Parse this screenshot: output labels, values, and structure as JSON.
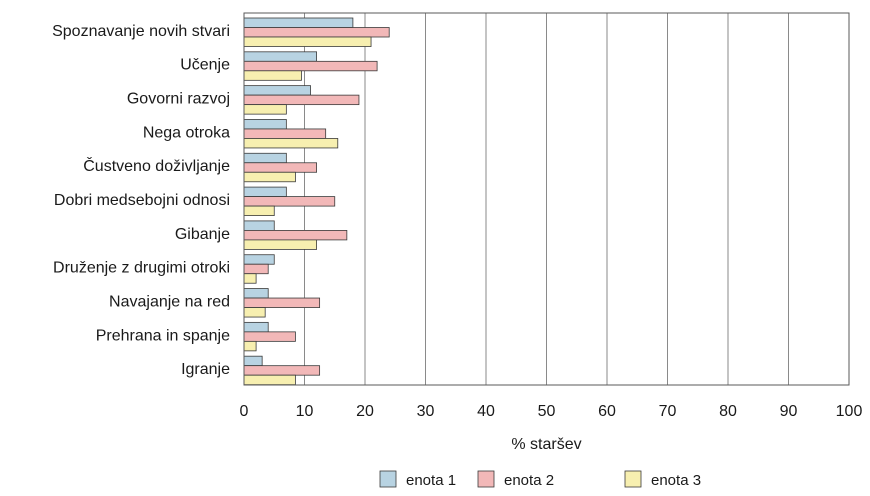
{
  "chart_data": {
    "type": "bar",
    "orientation": "horizontal",
    "categories": [
      "Spoznavanje novih stvari",
      "Učenje",
      "Govorni razvoj",
      "Nega otroka",
      "Čustveno doživljanje",
      "Dobri medsebojni odnosi",
      "Gibanje",
      "Druženje z drugimi otroki",
      "Navajanje na red",
      "Prehrana in spanje",
      "Igranje"
    ],
    "series": [
      {
        "name": "enota 1",
        "color": "#b8d3e2",
        "values": [
          18,
          12,
          11,
          7,
          7,
          7,
          5,
          5,
          4,
          4,
          3
        ]
      },
      {
        "name": "enota 2",
        "color": "#f2b8b8",
        "values": [
          24,
          22,
          19,
          13.5,
          12,
          15,
          17,
          4,
          12.5,
          8.5,
          12.5
        ]
      },
      {
        "name": "enota 3",
        "color": "#f7efb0",
        "values": [
          21,
          9.5,
          7,
          15.5,
          8.5,
          5,
          12,
          2,
          3.5,
          2,
          8.5
        ]
      }
    ],
    "xlabel": "% staršev",
    "xlim": [
      0,
      100
    ],
    "xticks": [
      "0",
      "10",
      "20",
      "30",
      "40",
      "50",
      "60",
      "70",
      "80",
      "90",
      "100"
    ],
    "grid": true,
    "legend_position": "bottom"
  }
}
